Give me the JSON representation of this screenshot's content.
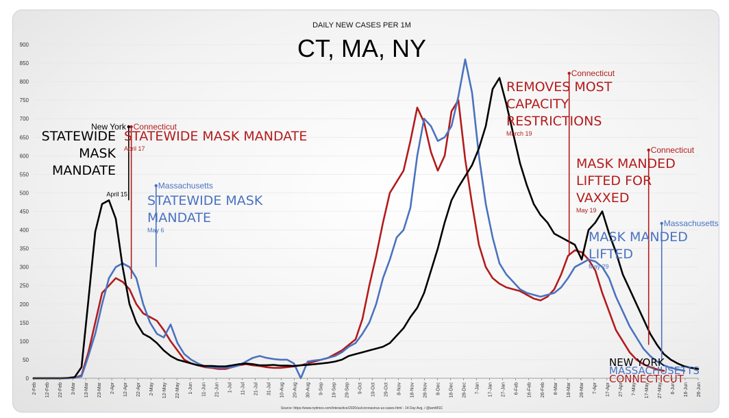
{
  "chart_data": {
    "type": "line",
    "subtitle": "DAILY NEW CASES PER 1M",
    "title": "CT, MA, NY",
    "source": "Source: https://www.nytimes.com/interactive/2020/us/coronavirus-us-cases.html - 14 Day Avg. / @iamMSC",
    "ylim": [
      0,
      900
    ],
    "y_ticks": [
      0,
      50,
      100,
      150,
      200,
      250,
      300,
      350,
      400,
      450,
      500,
      550,
      600,
      650,
      700,
      750,
      800,
      850,
      900
    ],
    "x_tick_labels": [
      "2-Feb",
      "12-Feb",
      "22-Feb",
      "3-Mar",
      "13-Mar",
      "23-Mar",
      "2-Apr",
      "12-Apr",
      "22-Apr",
      "2-May",
      "12-May",
      "22-May",
      "1-Jun",
      "11-Jun",
      "21-Jun",
      "1-Jul",
      "11-Jul",
      "21-Jul",
      "31-Jul",
      "10-Aug",
      "20-Aug",
      "30-Aug",
      "9-Sep",
      "19-Sep",
      "29-Sep",
      "9-Oct",
      "19-Oct",
      "29-Oct",
      "8-Nov",
      "18-Nov",
      "28-Nov",
      "8-Dec",
      "18-Dec",
      "28-Dec",
      "7-Jan",
      "17-Jan",
      "27-Jan",
      "6-Feb",
      "16-Feb",
      "26-Feb",
      "8-Mar",
      "18-Mar",
      "28-Mar",
      "7-Apr",
      "17-Apr",
      "27-Apr",
      "7-May",
      "17-May",
      "27-May",
      "6-Jun",
      "16-Jun",
      "26-Jun"
    ],
    "colors": {
      "ny": "#000000",
      "ma": "#4a72c0",
      "ct": "#b31b1b"
    },
    "series": [
      {
        "name": "NEW YORK",
        "key": "ny",
        "values": [
          0,
          0,
          0,
          0,
          0,
          1,
          3,
          30,
          210,
          395,
          470,
          480,
          430,
          300,
          200,
          150,
          120,
          110,
          95,
          75,
          60,
          50,
          45,
          40,
          35,
          33,
          33,
          32,
          32,
          35,
          38,
          40,
          38,
          35,
          35,
          36,
          34,
          34,
          33,
          35,
          36,
          38,
          40,
          42,
          45,
          50,
          60,
          65,
          70,
          75,
          80,
          85,
          95,
          115,
          135,
          165,
          190,
          230,
          290,
          350,
          420,
          480,
          515,
          545,
          575,
          620,
          680,
          780,
          810,
          740,
          660,
          580,
          520,
          470,
          440,
          420,
          390,
          380,
          370,
          360,
          320,
          400,
          420,
          450,
          390,
          340,
          280,
          240,
          200,
          160,
          120,
          90,
          65,
          50,
          40,
          32,
          28,
          25
        ]
      },
      {
        "name": "MASSACHUSETTS",
        "key": "ma",
        "values": [
          0,
          0,
          0,
          0,
          0,
          0,
          1,
          5,
          60,
          120,
          200,
          270,
          300,
          310,
          300,
          270,
          200,
          150,
          120,
          110,
          145,
          95,
          65,
          50,
          40,
          32,
          30,
          28,
          28,
          30,
          35,
          45,
          55,
          60,
          55,
          52,
          50,
          50,
          40,
          0,
          45,
          48,
          50,
          55,
          60,
          70,
          85,
          95,
          120,
          150,
          200,
          270,
          320,
          380,
          400,
          460,
          600,
          700,
          680,
          640,
          650,
          680,
          760,
          860,
          770,
          600,
          470,
          380,
          310,
          280,
          260,
          240,
          230,
          225,
          220,
          225,
          230,
          245,
          270,
          300,
          310,
          320,
          315,
          300,
          270,
          220,
          180,
          140,
          110,
          80,
          60,
          45,
          35,
          28,
          24,
          20
        ]
      },
      {
        "name": "CONNECTICUT",
        "key": "ct",
        "values": [
          0,
          0,
          0,
          0,
          0,
          0,
          1,
          8,
          70,
          150,
          230,
          250,
          270,
          260,
          240,
          200,
          175,
          165,
          155,
          130,
          100,
          75,
          50,
          40,
          35,
          30,
          28,
          25,
          25,
          30,
          35,
          38,
          35,
          33,
          30,
          28,
          28,
          30,
          32,
          35,
          40,
          45,
          50,
          55,
          65,
          75,
          90,
          105,
          160,
          250,
          330,
          420,
          500,
          530,
          560,
          640,
          730,
          690,
          610,
          560,
          600,
          720,
          750,
          590,
          470,
          360,
          300,
          270,
          255,
          245,
          240,
          235,
          225,
          215,
          210,
          220,
          240,
          280,
          330,
          345,
          340,
          320,
          290,
          230,
          180,
          130,
          100,
          70,
          50,
          38,
          30,
          24,
          20
        ]
      }
    ],
    "end_labels": {
      "ny": "NEW YORK",
      "ma": "MASSACHUSETTS",
      "ct": "CONNECTICUT"
    },
    "annotations": [
      {
        "id": "ny-apr15",
        "color": "#000000",
        "state": "New York",
        "text_lines": [
          "STATEWIDE",
          "MASK",
          "MANDATE"
        ],
        "date": "April 15"
      },
      {
        "id": "ct-apr17",
        "color": "#b31b1b",
        "state": "Connecticut",
        "text_lines": [
          "STATEWIDE MASK MANDATE"
        ],
        "date": "April 17"
      },
      {
        "id": "ma-may6",
        "color": "#4a72c0",
        "state": "Massachusetts",
        "text_lines": [
          "STATEWIDE MASK",
          "MANDATE"
        ],
        "date": "May 6"
      },
      {
        "id": "ct-mar19",
        "color": "#b31b1b",
        "state": "Connecticut",
        "text_lines": [
          "REMOVES MOST",
          "CAPACITY",
          "RESTRICTIONS"
        ],
        "date": "March 19"
      },
      {
        "id": "ct-may19",
        "color": "#b31b1b",
        "state": "Connecticut",
        "text_lines": [
          "MASK MANDED",
          "LIFTED FOR",
          "VAXXED"
        ],
        "date": "May 19"
      },
      {
        "id": "ma-may29",
        "color": "#4a72c0",
        "state": "Massachusetts",
        "text_lines": [
          "MASK MANDED",
          "LIFTED"
        ],
        "date": "May 29"
      }
    ]
  }
}
